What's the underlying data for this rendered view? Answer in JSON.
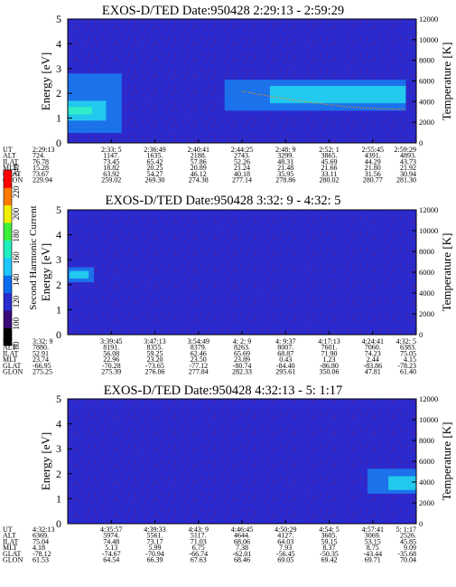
{
  "chart_data": [
    {
      "type": "heatmap",
      "title": "EXOS-D/TED   Date:950428  2:29:13 - 2:59:29",
      "ylabel": "Energy [eV]",
      "ylim": [
        0,
        5
      ],
      "yticks": [
        "0",
        "1",
        "2",
        "3",
        "4",
        "5"
      ],
      "y2label": "Temperature [K]",
      "y2lim": [
        0,
        12000
      ],
      "y2ticks": [
        "0",
        "2000",
        "4000",
        "6000",
        "8000",
        "10000",
        "12000"
      ],
      "background_color": "#2a2acf",
      "bands": [
        {
          "x0": 0.0,
          "x1": 0.155,
          "y0": 0.4,
          "y1": 2.8,
          "level": "mid"
        },
        {
          "x0": 0.0,
          "x1": 0.11,
          "y0": 0.9,
          "y1": 1.7,
          "level": "high"
        },
        {
          "x0": 0.0,
          "x1": 0.07,
          "y0": 1.15,
          "y1": 1.45,
          "level": "peak"
        },
        {
          "x0": 0.45,
          "x1": 0.97,
          "y0": 1.3,
          "y1": 2.55,
          "level": "mid"
        },
        {
          "x0": 0.58,
          "x1": 0.97,
          "y0": 1.6,
          "y1": 2.3,
          "level": "high"
        }
      ],
      "temperature_trace": [
        [
          0.5,
          5000
        ],
        [
          0.6,
          4400
        ],
        [
          0.7,
          3900
        ],
        [
          0.8,
          3500
        ],
        [
          0.9,
          3300
        ],
        [
          0.97,
          3250
        ]
      ],
      "table": {
        "row_labels": [
          "UT",
          "ALT",
          "ILAT",
          "MLT",
          "GLAT",
          "GLON"
        ],
        "columns": [
          [
            "2:29:13",
            "724.",
            "76.78",
            "15.28",
            "73.67",
            "229.94"
          ],
          [
            "2:33: 5",
            "1147.",
            "73.45",
            "18.82",
            "63.92",
            "259.02"
          ],
          [
            "2:36:49",
            "1635.",
            "65.42",
            "20.25",
            "54.27",
            "269.30"
          ],
          [
            "2:40:41",
            "2188.",
            "57.86",
            "20.89",
            "46.12",
            "274.38"
          ],
          [
            "2:44:25",
            "2743.",
            "52.26",
            "21.24",
            "40.18",
            "277.14"
          ],
          [
            "2:48: 9",
            "3299.",
            "48.31",
            "21.48",
            "35.95",
            "278.86"
          ],
          [
            "2:52: 1",
            "3865.",
            "45.69",
            "21.66",
            "33.11",
            "280.02"
          ],
          [
            "2:55:45",
            "4391.",
            "44.29",
            "21.80",
            "31.56",
            "280.77"
          ],
          [
            "2:59:29",
            "4893.",
            "43.73",
            "21.92",
            "30.94",
            "281.30"
          ]
        ]
      }
    },
    {
      "type": "heatmap",
      "title": "EXOS-D/TED   Date:950428  3:32: 9 - 4:32: 5",
      "ylabel": "Energy [eV]",
      "ylim": [
        0,
        5
      ],
      "yticks": [
        "0",
        "1",
        "2",
        "3",
        "4",
        "5"
      ],
      "y2label": "Temperature [K]",
      "y2lim": [
        0,
        12000
      ],
      "y2ticks": [
        "0",
        "2000",
        "4000",
        "6000",
        "8000",
        "10000",
        "12000"
      ],
      "background_color": "#2a2acf",
      "bands": [
        {
          "x0": 0.0,
          "x1": 0.075,
          "y0": 2.1,
          "y1": 2.7,
          "level": "mid"
        },
        {
          "x0": 0.005,
          "x1": 0.06,
          "y0": 2.25,
          "y1": 2.55,
          "level": "high"
        }
      ],
      "temperature_trace": [],
      "table": {
        "row_labels": [
          "UT",
          "ALT",
          "ILAT",
          "MLT",
          "GLAT",
          "GLON"
        ],
        "columns": [
          [
            "3:32: 9",
            "7880.",
            "52.91",
            "23.74",
            "-66.95",
            "275.25"
          ],
          [
            "3:39:45",
            "8191.",
            "56.08",
            "22.96",
            "-70.28",
            "275.39"
          ],
          [
            "3:47:13",
            "8355.",
            "59.25",
            "23.20",
            "-73.65",
            "276.06"
          ],
          [
            "3:54:49",
            "8379.",
            "62.46",
            "23.50",
            "-77.12",
            "277.84"
          ],
          [
            "4: 2: 9",
            "8263.",
            "65.69",
            "23.89",
            "-80.74",
            "282.33"
          ],
          [
            "4: 9:37",
            "8007.",
            "68.87",
            "0.43",
            "-84.40",
            "295.61"
          ],
          [
            "4:17:13",
            "7601.",
            "71.90",
            "1.23",
            "-86.80",
            "350.06"
          ],
          [
            "4:24:41",
            "7060.",
            "74.23",
            "2.44",
            "-83.86",
            "47.81"
          ],
          [
            "4:32: 5",
            "6383.",
            "75.05",
            "4.15",
            "-78.23",
            "61.40"
          ]
        ]
      }
    },
    {
      "type": "heatmap",
      "title": "EXOS-D/TED   Date:950428  4:32:13 - 5: 1:17",
      "ylabel": "Energy [eV]",
      "ylim": [
        0,
        5
      ],
      "yticks": [
        "0",
        "1",
        "2",
        "3",
        "4",
        "5"
      ],
      "y2label": "Temperature [K]",
      "y2lim": [
        0,
        12000
      ],
      "y2ticks": [
        "0",
        "2000",
        "4000",
        "6000",
        "8000",
        "10000",
        "12000"
      ],
      "background_color": "#2a2acf",
      "bands": [
        {
          "x0": 0.86,
          "x1": 1.0,
          "y0": 1.2,
          "y1": 2.2,
          "level": "mid"
        },
        {
          "x0": 0.92,
          "x1": 1.0,
          "y0": 1.35,
          "y1": 1.9,
          "level": "high"
        }
      ],
      "temperature_trace": [],
      "table": {
        "row_labels": [
          "UT",
          "ALT",
          "ILAT",
          "MLT",
          "GLAT",
          "GLON"
        ],
        "columns": [
          [
            "4:32:13",
            "6369.",
            "75.04",
            "4.18",
            "-78.12",
            "61.53"
          ],
          [
            "4:35:57",
            "5974.",
            "74.48",
            "5.13",
            "-74.67",
            "64.54"
          ],
          [
            "4:39:33",
            "5561.",
            "73.17",
            "5.99",
            "-70.94",
            "66.39"
          ],
          [
            "4:43: 9",
            "5117.",
            "71.03",
            "6.75",
            "-66.74",
            "67.63"
          ],
          [
            "4:46:45",
            "4644.",
            "68.06",
            "7.38",
            "-62.01",
            "68.46"
          ],
          [
            "4:50:29",
            "4127.",
            "64.03",
            "7.93",
            "-56.45",
            "69.05"
          ],
          [
            "4:54: 5",
            "3605.",
            "59.15",
            "8.37",
            "-50.35",
            "69.42"
          ],
          [
            "4:57:41",
            "3069.",
            "53.15",
            "8.75",
            "-43.44",
            "69.71"
          ],
          [
            "5: 1:17",
            "2526.",
            "45.85",
            "9.09",
            "-35.68",
            "70.04"
          ]
        ]
      }
    }
  ],
  "colorbar": {
    "label": "Second Harmonic Current",
    "min": 80,
    "max": 240,
    "tick_labels": [
      "80",
      "100",
      "120",
      "140",
      "160",
      "180",
      "200",
      "220",
      "240"
    ],
    "colors": [
      "#000000",
      "#3a0a78",
      "#2a2acf",
      "#0a6cf0",
      "#1ec8ff",
      "#20f0c0",
      "#3cf03c",
      "#f0f000",
      "#ff7a00",
      "#ff0000"
    ]
  },
  "level_colors": {
    "mid": "#1a78ee",
    "high": "#23d0ee",
    "peak": "#32f0c4",
    "noise": "#7a1060",
    "trace": "#ff8a00"
  }
}
